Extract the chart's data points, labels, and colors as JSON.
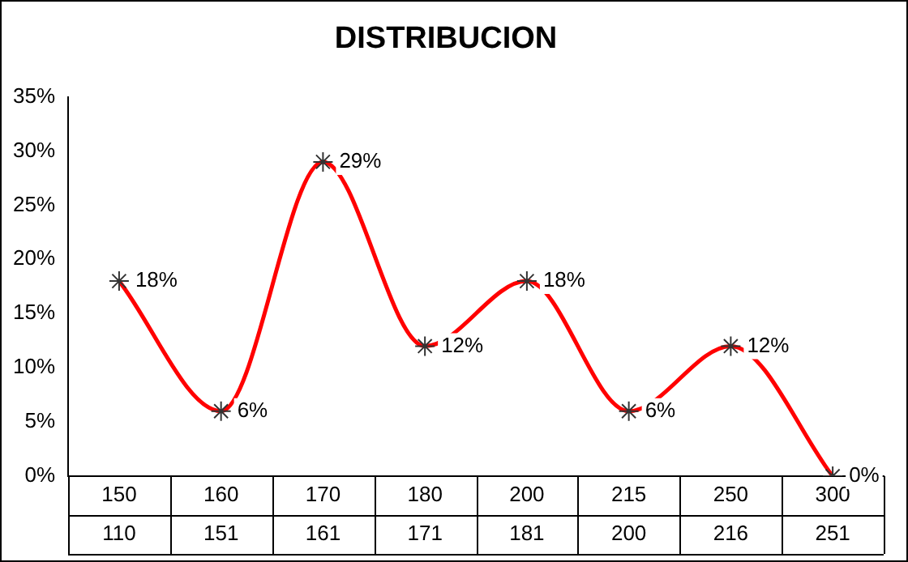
{
  "chart_data": {
    "type": "line",
    "title": "DISTRIBUCION",
    "categories": [
      "150\n110",
      "160\n151",
      "170\n161",
      "180\n171",
      "200\n181",
      "215\n200",
      "250\n216",
      "300\n251"
    ],
    "series": [
      {
        "color": "#ff0000",
        "values": [
          18,
          6,
          29,
          12,
          18,
          6,
          12,
          0
        ],
        "value_labels": [
          "18%",
          "6%",
          "29%",
          "12%",
          "18%",
          "6%",
          "12%",
          "0%"
        ]
      }
    ],
    "ylim": [
      0,
      35
    ],
    "yticks": [
      {
        "value": 0,
        "label": "0%"
      },
      {
        "value": 5,
        "label": "5%"
      },
      {
        "value": 10,
        "label": "10%"
      },
      {
        "value": 15,
        "label": "15%"
      },
      {
        "value": 20,
        "label": "20%"
      },
      {
        "value": 25,
        "label": "25%"
      },
      {
        "value": 30,
        "label": "30%"
      },
      {
        "value": 35,
        "label": "35%"
      }
    ],
    "grid": false,
    "legend": false,
    "marker": "cross",
    "line_style": "solid"
  }
}
